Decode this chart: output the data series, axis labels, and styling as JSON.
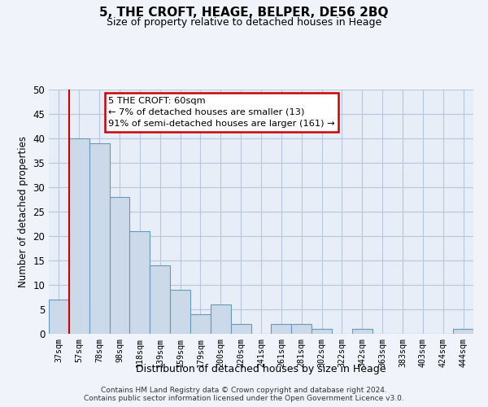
{
  "title": "5, THE CROFT, HEAGE, BELPER, DE56 2BQ",
  "subtitle": "Size of property relative to detached houses in Heage",
  "xlabel": "Distribution of detached houses by size in Heage",
  "ylabel": "Number of detached properties",
  "bar_color": "#ccd9e8",
  "bar_edge_color": "#6699bb",
  "categories": [
    "37sqm",
    "57sqm",
    "78sqm",
    "98sqm",
    "118sqm",
    "139sqm",
    "159sqm",
    "179sqm",
    "200sqm",
    "220sqm",
    "241sqm",
    "261sqm",
    "281sqm",
    "302sqm",
    "322sqm",
    "342sqm",
    "363sqm",
    "383sqm",
    "403sqm",
    "424sqm",
    "444sqm"
  ],
  "values": [
    7,
    40,
    39,
    28,
    21,
    14,
    9,
    4,
    6,
    2,
    0,
    2,
    2,
    1,
    0,
    1,
    0,
    0,
    0,
    0,
    1
  ],
  "ylim": [
    0,
    50
  ],
  "yticks": [
    0,
    5,
    10,
    15,
    20,
    25,
    30,
    35,
    40,
    45,
    50
  ],
  "vline_x": 0.5,
  "vline_color": "#cc0000",
  "annotation_title": "5 THE CROFT: 60sqm",
  "annotation_line2": "← 7% of detached houses are smaller (13)",
  "annotation_line3": "91% of semi-detached houses are larger (161) →",
  "annotation_box_edge": "#cc0000",
  "footnote1": "Contains HM Land Registry data © Crown copyright and database right 2024.",
  "footnote2": "Contains public sector information licensed under the Open Government Licence v3.0.",
  "background_color": "#f0f4fa",
  "plot_bg_color": "#e8eef8",
  "grid_color": "#b8c8dc"
}
